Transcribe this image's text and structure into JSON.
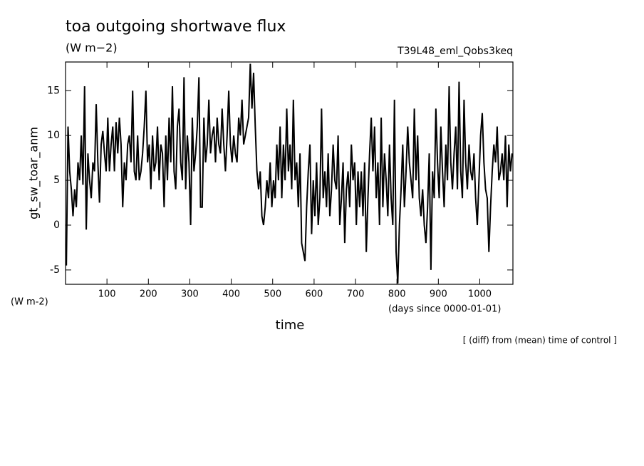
{
  "chart_data": {
    "type": "line",
    "title": "toa outgoing shortwave flux",
    "subtitle": "(W m−2)",
    "run_label": "T39L48_eml_Qobs3keq",
    "y_label": "gt_sw_toar_anm",
    "y_units": "(W m-2)",
    "x_units": "(days since 0000-01-01)",
    "x_label": "time",
    "note": "[ (diff) from (mean) time of control ]",
    "xlim": [
      0,
      1080
    ],
    "ylim": [
      -6.6,
      18.2
    ],
    "xticks": [
      100,
      200,
      300,
      400,
      500,
      600,
      700,
      800,
      900,
      1000
    ],
    "yticks": [
      -5,
      0,
      5,
      10,
      15
    ],
    "grid": false,
    "series": [
      {
        "color": "#000000",
        "x": [
          2,
          6,
          10,
          14,
          18,
          22,
          26,
          30,
          34,
          38,
          42,
          46,
          50,
          54,
          58,
          62,
          66,
          70,
          74,
          78,
          82,
          86,
          90,
          94,
          98,
          102,
          106,
          110,
          114,
          118,
          122,
          126,
          130,
          134,
          138,
          142,
          146,
          150,
          154,
          158,
          162,
          166,
          170,
          174,
          178,
          182,
          186,
          190,
          194,
          198,
          202,
          206,
          210,
          214,
          218,
          222,
          226,
          230,
          234,
          238,
          242,
          246,
          250,
          254,
          258,
          262,
          266,
          270,
          274,
          278,
          282,
          286,
          290,
          294,
          298,
          302,
          306,
          310,
          314,
          318,
          322,
          326,
          330,
          334,
          338,
          342,
          346,
          350,
          354,
          358,
          362,
          366,
          370,
          374,
          378,
          382,
          386,
          390,
          394,
          398,
          402,
          406,
          410,
          414,
          418,
          422,
          426,
          430,
          434,
          438,
          442,
          446,
          450,
          454,
          458,
          462,
          466,
          470,
          474,
          478,
          482,
          486,
          490,
          494,
          498,
          502,
          506,
          510,
          514,
          518,
          522,
          526,
          530,
          534,
          538,
          542,
          546,
          550,
          554,
          558,
          562,
          566,
          570,
          574,
          578,
          582,
          586,
          590,
          594,
          598,
          602,
          606,
          610,
          614,
          618,
          622,
          626,
          630,
          634,
          638,
          642,
          646,
          650,
          654,
          658,
          662,
          666,
          670,
          674,
          678,
          682,
          686,
          690,
          694,
          698,
          702,
          706,
          710,
          714,
          718,
          722,
          726,
          730,
          734,
          738,
          742,
          746,
          750,
          754,
          758,
          762,
          766,
          770,
          774,
          778,
          782,
          786,
          790,
          794,
          798,
          802,
          806,
          810,
          814,
          818,
          822,
          826,
          830,
          834,
          838,
          842,
          846,
          850,
          854,
          858,
          862,
          866,
          870,
          874,
          878,
          882,
          886,
          890,
          894,
          898,
          902,
          906,
          910,
          914,
          918,
          922,
          926,
          930,
          934,
          938,
          942,
          946,
          950,
          954,
          958,
          962,
          966,
          970,
          974,
          978,
          982,
          986,
          990,
          994,
          998,
          1002,
          1006,
          1010,
          1014,
          1018,
          1022,
          1026,
          1030,
          1034,
          1038,
          1042,
          1046,
          1050,
          1054,
          1058,
          1062,
          1066,
          1070,
          1074,
          1078
        ],
        "values": [
          -4.5,
          11,
          6,
          4,
          1,
          4,
          2,
          7,
          5,
          10,
          4.5,
          15.5,
          -0.5,
          8,
          5,
          3,
          7,
          6,
          13.5,
          7,
          2.5,
          9,
          10.5,
          8,
          6,
          12,
          6,
          9,
          11,
          6,
          11.5,
          8,
          12,
          9,
          2,
          7,
          5,
          9,
          10,
          7,
          15,
          6,
          5,
          10,
          5,
          6,
          8,
          11,
          15,
          7,
          9,
          4,
          10,
          6,
          7,
          11,
          5,
          9,
          8,
          2,
          10,
          5,
          12,
          7,
          15.5,
          6,
          4,
          11,
          13,
          7,
          5,
          16.5,
          4,
          10,
          7,
          0,
          12,
          6,
          8,
          11,
          16.5,
          2,
          2,
          12,
          7,
          9,
          14,
          8,
          10,
          11,
          7,
          12,
          9,
          8,
          13,
          9,
          6,
          10,
          15,
          9,
          7,
          10,
          8,
          7,
          12,
          10,
          14,
          9,
          10,
          11,
          12,
          18,
          13,
          17,
          11,
          6,
          4,
          6,
          1,
          0,
          2,
          5,
          3,
          7,
          2,
          5,
          3,
          9,
          5,
          11,
          3,
          9,
          5,
          13,
          6,
          9,
          4,
          14,
          5,
          7,
          2,
          8,
          -2,
          -3,
          -4,
          2,
          6,
          9,
          -1,
          5,
          1,
          7,
          0,
          3,
          13,
          3,
          6,
          2,
          8,
          1,
          4,
          9,
          5,
          4,
          10,
          0,
          3,
          7,
          -2,
          4,
          6,
          2,
          9,
          5,
          7,
          0,
          6,
          2,
          6,
          1,
          7,
          -3,
          3,
          8,
          12,
          6,
          11,
          3,
          7,
          0,
          12,
          2,
          8,
          5,
          1,
          9,
          3,
          0,
          14,
          -3,
          -6.5,
          0,
          4,
          9,
          2,
          6,
          11,
          7,
          5,
          3,
          13,
          5,
          10,
          3,
          1,
          4,
          0,
          -2,
          2,
          8,
          -5,
          6,
          3,
          13,
          7,
          3,
          11,
          6,
          2,
          9,
          5,
          15.5,
          7,
          4,
          8,
          11,
          4,
          16,
          6,
          3,
          14,
          7,
          4,
          9,
          6,
          5,
          8,
          3,
          0,
          5,
          10,
          12.5,
          7,
          4,
          3,
          -3,
          2,
          6,
          9,
          7,
          11,
          5,
          6,
          8,
          5,
          10,
          2,
          9,
          6,
          8
        ]
      }
    ]
  }
}
